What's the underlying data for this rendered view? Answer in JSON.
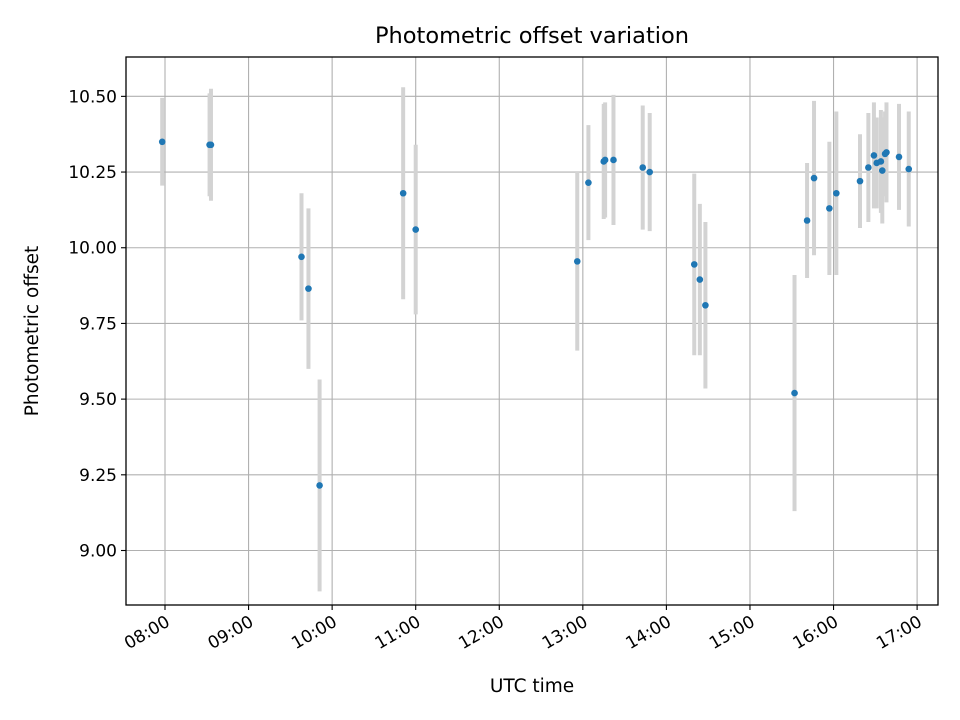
{
  "chart_data": {
    "type": "scatter",
    "title": "Photometric offset variation",
    "xlabel": "UTC time",
    "ylabel": "Photometric offset",
    "xlim": [
      "07:32",
      "17:15"
    ],
    "ylim": [
      8.82,
      10.63
    ],
    "x_ticks": [
      "08:00",
      "09:00",
      "10:00",
      "11:00",
      "12:00",
      "13:00",
      "14:00",
      "15:00",
      "16:00",
      "17:00"
    ],
    "y_ticks": [
      "9.00",
      "9.25",
      "9.50",
      "9.75",
      "10.00",
      "10.25",
      "10.50"
    ],
    "grid": true,
    "colors": {
      "point": "#1f77b4",
      "errorbar": "#d3d3d3",
      "grid": "#b0b0b0",
      "axis": "#000000"
    },
    "points": [
      {
        "x": "07:58",
        "y": 10.35,
        "err": 0.145
      },
      {
        "x": "08:32",
        "y": 10.34,
        "err": 0.17
      },
      {
        "x": "08:33",
        "y": 10.34,
        "err": 0.185
      },
      {
        "x": "09:38",
        "y": 9.97,
        "err": 0.21
      },
      {
        "x": "09:43",
        "y": 9.865,
        "err": 0.265
      },
      {
        "x": "09:51",
        "y": 9.215,
        "err": 0.35
      },
      {
        "x": "10:51",
        "y": 10.18,
        "err": 0.35
      },
      {
        "x": "11:00",
        "y": 10.06,
        "err": 0.28
      },
      {
        "x": "12:56",
        "y": 9.955,
        "err": 0.295
      },
      {
        "x": "13:04",
        "y": 10.215,
        "err": 0.19
      },
      {
        "x": "13:15",
        "y": 10.285,
        "err": 0.19
      },
      {
        "x": "13:16",
        "y": 10.29,
        "err": 0.19
      },
      {
        "x": "13:22",
        "y": 10.29,
        "err": 0.215
      },
      {
        "x": "13:43",
        "y": 10.265,
        "err": 0.205
      },
      {
        "x": "13:48",
        "y": 10.25,
        "err": 0.195
      },
      {
        "x": "14:20",
        "y": 9.945,
        "err": 0.3
      },
      {
        "x": "14:24",
        "y": 9.895,
        "err": 0.25
      },
      {
        "x": "14:28",
        "y": 9.81,
        "err": 0.275
      },
      {
        "x": "15:32",
        "y": 9.52,
        "err": 0.39
      },
      {
        "x": "15:41",
        "y": 10.09,
        "err": 0.19
      },
      {
        "x": "15:46",
        "y": 10.23,
        "err": 0.255
      },
      {
        "x": "15:57",
        "y": 10.13,
        "err": 0.22
      },
      {
        "x": "16:02",
        "y": 10.18,
        "err": 0.27
      },
      {
        "x": "16:19",
        "y": 10.22,
        "err": 0.155
      },
      {
        "x": "16:25",
        "y": 10.265,
        "err": 0.18
      },
      {
        "x": "16:29",
        "y": 10.305,
        "err": 0.175
      },
      {
        "x": "16:31",
        "y": 10.28,
        "err": 0.15
      },
      {
        "x": "16:34",
        "y": 10.285,
        "err": 0.17
      },
      {
        "x": "16:35",
        "y": 10.255,
        "err": 0.175
      },
      {
        "x": "16:37",
        "y": 10.31,
        "err": 0.14
      },
      {
        "x": "16:38",
        "y": 10.315,
        "err": 0.165
      },
      {
        "x": "16:47",
        "y": 10.3,
        "err": 0.175
      },
      {
        "x": "16:54",
        "y": 10.26,
        "err": 0.19
      }
    ]
  }
}
